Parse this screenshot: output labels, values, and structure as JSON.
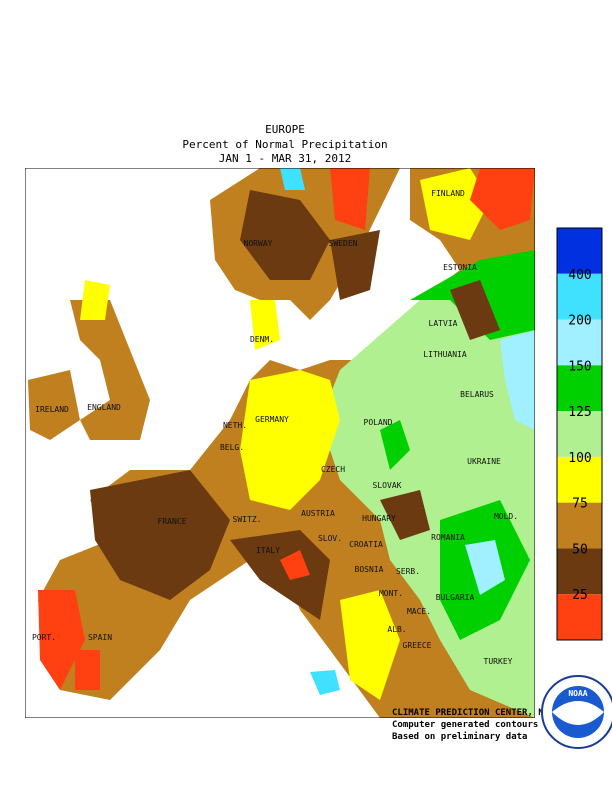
{
  "header": {
    "title": "EUROPE",
    "subtitle": "Percent of Normal Precipitation",
    "period": "JAN  1 - MAR 31, 2012"
  },
  "map": {
    "labels": [
      "NORWAY",
      "SWEDEN",
      "FINLAND",
      "ESTONIA",
      "LATVIA",
      "LITHUANIA",
      "DENM.",
      "BELARUS",
      "IRELAND",
      "ENGLAND",
      "NETH.",
      "BELG.",
      "GERMANY",
      "POLAND",
      "UKRAINE",
      "CZECH",
      "SLOVAK",
      "FRANCE",
      "SWITZ.",
      "AUSTRIA",
      "HUNGARY",
      "MOLD.",
      "ROMANIA",
      "ITALY",
      "SLOV.",
      "CROATIA",
      "BOSNIA",
      "SERB.",
      "BULGARIA",
      "MONT.",
      "MACE.",
      "ALB.",
      "PORT.",
      "SPAIN",
      "GREECE",
      "TURKEY"
    ]
  },
  "legend": {
    "labels": [
      "400",
      "200",
      "150",
      "125",
      "100",
      "75",
      "50",
      "25"
    ]
  },
  "footer": {
    "lines": [
      "CLIMATE PREDICTION CENTER, NOAA",
      "Computer generated contours",
      "Based on preliminary data"
    ],
    "logo": "NOAA"
  }
}
